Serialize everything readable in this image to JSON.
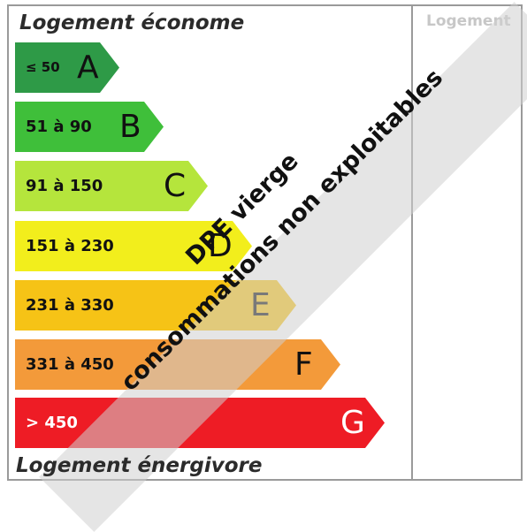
{
  "labels": {
    "top": "Logement économe",
    "bottom": "Logement énergivore",
    "right_header": "Logement"
  },
  "bands": [
    {
      "letter": "A",
      "range": "≤ 50",
      "color": "#2e9a47"
    },
    {
      "letter": "B",
      "range": "51 à 90",
      "color": "#3fbf3a"
    },
    {
      "letter": "C",
      "range": "91 à 150",
      "color": "#b5e53c"
    },
    {
      "letter": "D",
      "range": "151 à 230",
      "color": "#f2ee1c"
    },
    {
      "letter": "E",
      "range": "231 à 330",
      "color": "#f6c316"
    },
    {
      "letter": "F",
      "range": "331 à 450",
      "color": "#f39a3a"
    },
    {
      "letter": "G",
      "range": "> 450",
      "color": "#ee1c25"
    }
  ],
  "stamp": {
    "line1": "DPE vierge",
    "line2": "consommations non exploitables"
  },
  "colors": {
    "border": "#9a9a9a",
    "stamp_overlay": "#d0d0d0"
  }
}
